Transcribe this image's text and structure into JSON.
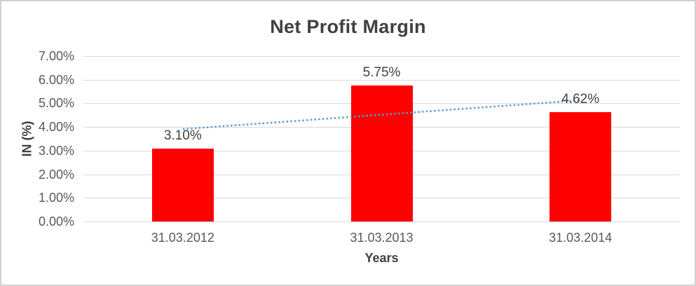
{
  "frame": {
    "border_color": "#d2d0d0",
    "background": "#ffffff"
  },
  "chart_data": {
    "type": "bar",
    "title": "Net Profit Margin",
    "xlabel": "Years",
    "ylabel": "IN (%)",
    "categories": [
      "31.03.2012",
      "31.03.2013",
      "31.03.2014"
    ],
    "values": [
      3.1,
      5.75,
      4.62
    ],
    "data_labels": [
      "3.10%",
      "5.75%",
      "4.62%"
    ],
    "y_ticks": [
      "0.00%",
      "1.00%",
      "2.00%",
      "3.00%",
      "4.00%",
      "5.00%",
      "6.00%",
      "7.00%"
    ],
    "ylim": [
      0,
      7
    ],
    "grid": true,
    "legend": "none",
    "bar_color": "#ff0000",
    "gridline_color": "#d9d9d9",
    "axis_line_color": "#d9d9d9",
    "tick_label_color": "#595959",
    "title_color": "#404040",
    "trendline": {
      "type": "linear",
      "style": "dotted",
      "color": "#5b9bd5",
      "start_pct": 3.91,
      "end_pct": 5.13
    }
  }
}
